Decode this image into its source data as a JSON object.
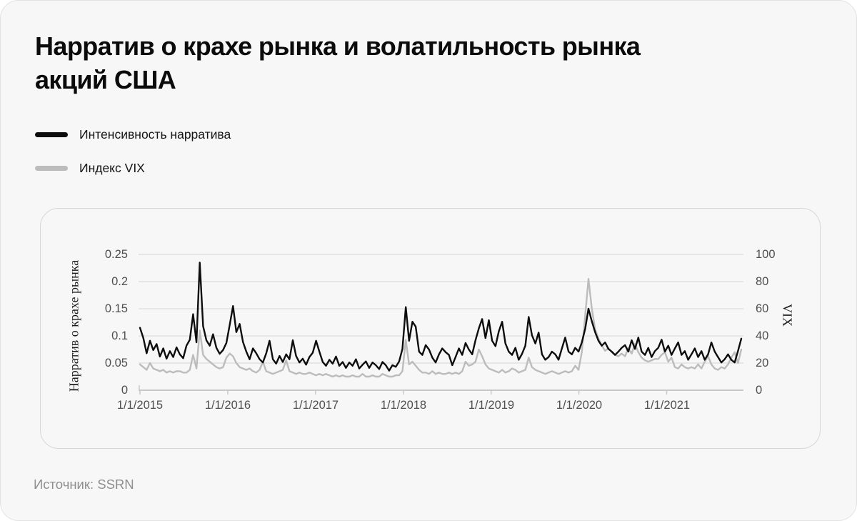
{
  "card": {
    "title_line1": "Нарратив о крахе рынка и волатильность рынка",
    "title_line2": "акций США",
    "source": "Источник: SSRN"
  },
  "legend": {
    "items": [
      {
        "label": "Интенсивность нарратива",
        "color": "#0d0d0d"
      },
      {
        "label": "Индекс VIX",
        "color": "#bcbcbc"
      }
    ]
  },
  "chart_data": {
    "type": "line",
    "title": "Нарратив о крахе рынка и волатильность рынка акций США",
    "source": "SSRN",
    "grid": true,
    "legend_position": "top-left",
    "x_axis": {
      "label": "",
      "range": [
        2015.0,
        2021.85
      ],
      "tick_years": [
        2015,
        2016,
        2017,
        2018,
        2019,
        2020,
        2021
      ],
      "tick_labels": [
        "1/1/2015",
        "1/1/2016",
        "1/1/2017",
        "1/1/2018",
        "1/1/2019",
        "1/1/2020",
        "1/1/2021"
      ]
    },
    "y_left": {
      "label": "Нарратив о крахе рынка",
      "range": [
        0,
        0.25
      ],
      "ticks": [
        0.25,
        0.2,
        0.15,
        0.1,
        0.05,
        0
      ],
      "tick_labels": [
        "0.25",
        "0.2",
        "0.15",
        "0.1",
        "0.05",
        "0"
      ]
    },
    "y_right": {
      "label": "VIX",
      "range": [
        0,
        100
      ],
      "ticks": [
        100,
        80,
        60,
        40,
        20,
        0
      ],
      "tick_labels": [
        "100",
        "80",
        "60",
        "40",
        "20",
        "0"
      ]
    },
    "sampling": "biweekly, 26 points per year, Jan 2015 — Nov 2021",
    "series": [
      {
        "name": "Интенсивность нарратива",
        "axis": "left",
        "color": "#0d0d0d",
        "width": 2.4,
        "values": [
          0.115,
          0.096,
          0.068,
          0.091,
          0.074,
          0.085,
          0.062,
          0.077,
          0.058,
          0.072,
          0.061,
          0.079,
          0.066,
          0.059,
          0.082,
          0.093,
          0.14,
          0.088,
          0.235,
          0.118,
          0.092,
          0.082,
          0.103,
          0.078,
          0.067,
          0.074,
          0.087,
          0.12,
          0.155,
          0.107,
          0.122,
          0.089,
          0.071,
          0.057,
          0.077,
          0.068,
          0.057,
          0.051,
          0.068,
          0.091,
          0.057,
          0.049,
          0.063,
          0.052,
          0.066,
          0.057,
          0.092,
          0.063,
          0.051,
          0.058,
          0.047,
          0.061,
          0.069,
          0.091,
          0.071,
          0.052,
          0.045,
          0.056,
          0.049,
          0.062,
          0.045,
          0.052,
          0.041,
          0.051,
          0.045,
          0.057,
          0.04,
          0.047,
          0.053,
          0.041,
          0.051,
          0.046,
          0.039,
          0.052,
          0.046,
          0.036,
          0.046,
          0.043,
          0.053,
          0.076,
          0.153,
          0.091,
          0.126,
          0.117,
          0.071,
          0.065,
          0.083,
          0.075,
          0.06,
          0.051,
          0.066,
          0.077,
          0.07,
          0.065,
          0.046,
          0.061,
          0.077,
          0.065,
          0.087,
          0.075,
          0.066,
          0.092,
          0.114,
          0.131,
          0.096,
          0.129,
          0.091,
          0.081,
          0.108,
          0.126,
          0.086,
          0.071,
          0.065,
          0.078,
          0.056,
          0.067,
          0.082,
          0.135,
          0.101,
          0.086,
          0.106,
          0.066,
          0.056,
          0.061,
          0.071,
          0.066,
          0.056,
          0.077,
          0.097,
          0.071,
          0.066,
          0.078,
          0.071,
          0.088,
          0.113,
          0.15,
          0.127,
          0.107,
          0.091,
          0.082,
          0.088,
          0.076,
          0.071,
          0.065,
          0.071,
          0.078,
          0.083,
          0.071,
          0.092,
          0.076,
          0.097,
          0.071,
          0.065,
          0.078,
          0.061,
          0.072,
          0.078,
          0.093,
          0.071,
          0.082,
          0.065,
          0.077,
          0.088,
          0.065,
          0.072,
          0.056,
          0.066,
          0.077,
          0.061,
          0.072,
          0.056,
          0.066,
          0.088,
          0.071,
          0.061,
          0.051,
          0.057,
          0.066,
          0.056,
          0.051,
          0.072,
          0.095
        ]
      },
      {
        "name": "Индекс VIX",
        "axis": "right",
        "color": "#bcbcbc",
        "width": 2.4,
        "values": [
          19,
          17,
          15,
          20,
          16,
          15,
          14,
          15,
          13,
          14,
          13,
          14,
          14,
          13,
          13,
          15,
          26,
          16,
          44,
          26,
          23,
          21,
          19,
          17,
          16,
          17,
          24,
          27,
          25,
          20,
          17,
          16,
          15,
          16,
          14,
          13,
          15,
          21,
          14,
          13,
          12,
          13,
          14,
          15,
          22,
          14,
          13,
          12,
          13,
          12,
          12,
          13,
          12,
          11,
          12,
          11,
          12,
          11,
          10,
          11,
          10,
          11,
          10,
          10,
          11,
          10,
          10,
          12,
          10,
          10,
          11,
          10,
          10,
          12,
          11,
          10,
          10,
          11,
          11,
          14,
          37,
          19,
          21,
          18,
          15,
          13,
          13,
          12,
          14,
          12,
          13,
          12,
          12,
          13,
          12,
          13,
          12,
          14,
          21,
          18,
          19,
          21,
          30,
          25,
          19,
          16,
          15,
          14,
          13,
          15,
          13,
          14,
          16,
          15,
          13,
          14,
          15,
          24,
          17,
          15,
          14,
          13,
          12,
          13,
          14,
          13,
          12,
          13,
          14,
          13,
          14,
          18,
          15,
          28,
          55,
          82,
          60,
          45,
          38,
          33,
          29,
          31,
          28,
          26,
          25,
          27,
          25,
          31,
          27,
          34,
          28,
          24,
          22,
          21,
          22,
          23,
          23,
          26,
          28,
          21,
          24,
          17,
          16,
          19,
          17,
          16,
          17,
          16,
          19,
          16,
          21,
          25,
          19,
          16,
          15,
          17,
          16,
          19,
          24,
          28,
          20,
          30
        ]
      }
    ]
  },
  "layout_colors": {
    "gridline": "#dcdcdc",
    "baseline": "#c8c8c8",
    "tick_text": "#4f4f4f"
  }
}
